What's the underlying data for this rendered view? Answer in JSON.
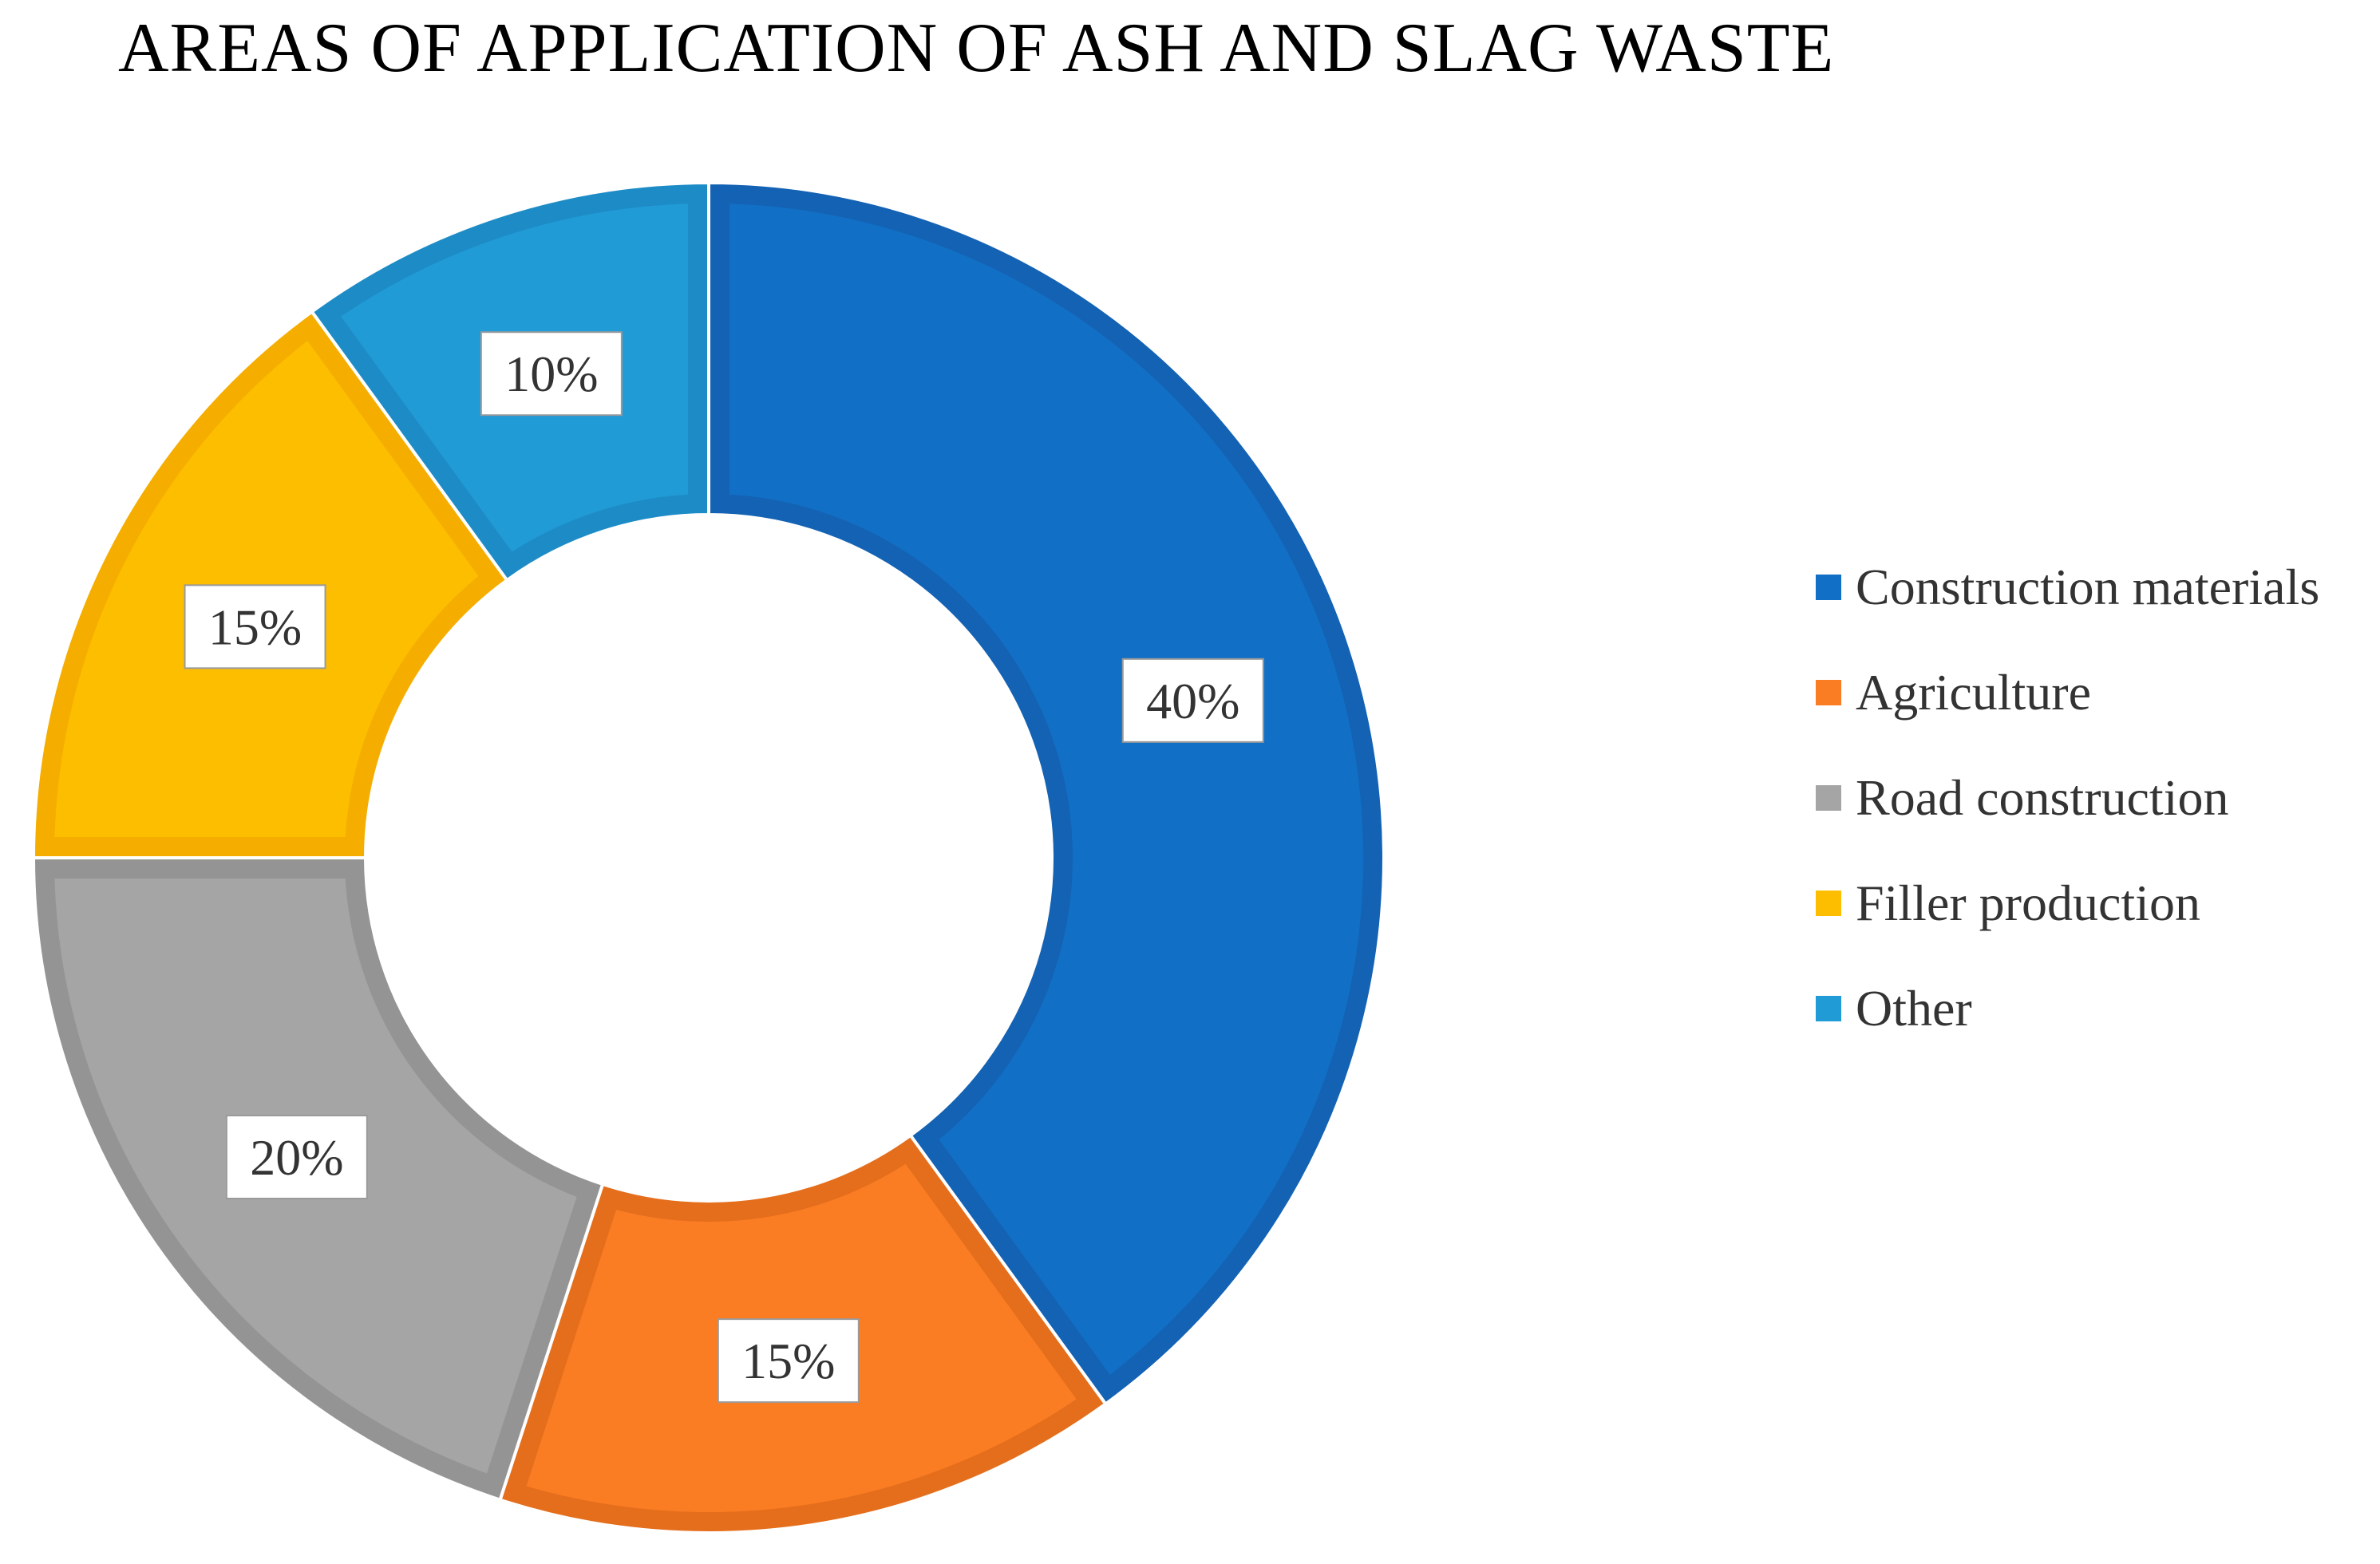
{
  "chart_data": {
    "type": "pie",
    "title": "AREAS OF APPLICATION OF ASH AND SLAG WASTE",
    "donut": true,
    "categories": [
      "Construction materials",
      "Agriculture",
      "Road construction",
      "Filler production",
      "Other"
    ],
    "values": [
      40,
      15,
      20,
      15,
      10
    ],
    "data_labels": [
      "40%",
      "15%",
      "20%",
      "15%",
      "10%"
    ],
    "colors": [
      "#1170C6",
      "#FA7C23",
      "#A5A5A5",
      "#FDBE00",
      "#219BD6"
    ],
    "border_colors": [
      "#1462B4",
      "#E46E1C",
      "#949494",
      "#F5AE00",
      "#1D8CC6"
    ],
    "legend_position": "right"
  }
}
